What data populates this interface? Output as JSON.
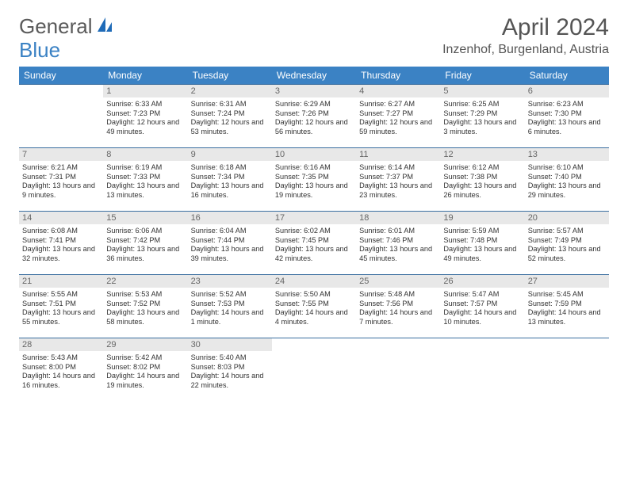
{
  "brand": {
    "part1": "General",
    "part2": "Blue"
  },
  "title": "April 2024",
  "location": "Inzenhof, Burgenland, Austria",
  "colors": {
    "header_bg": "#3b82c4",
    "header_text": "#ffffff",
    "daynum_bg": "#e8e8e8",
    "border": "#3b6fa0",
    "body_text": "#333333"
  },
  "dayHeaders": [
    "Sunday",
    "Monday",
    "Tuesday",
    "Wednesday",
    "Thursday",
    "Friday",
    "Saturday"
  ],
  "weeks": [
    [
      null,
      {
        "n": "1",
        "sr": "6:33 AM",
        "ss": "7:23 PM",
        "dl": "12 hours and 49 minutes."
      },
      {
        "n": "2",
        "sr": "6:31 AM",
        "ss": "7:24 PM",
        "dl": "12 hours and 53 minutes."
      },
      {
        "n": "3",
        "sr": "6:29 AM",
        "ss": "7:26 PM",
        "dl": "12 hours and 56 minutes."
      },
      {
        "n": "4",
        "sr": "6:27 AM",
        "ss": "7:27 PM",
        "dl": "12 hours and 59 minutes."
      },
      {
        "n": "5",
        "sr": "6:25 AM",
        "ss": "7:29 PM",
        "dl": "13 hours and 3 minutes."
      },
      {
        "n": "6",
        "sr": "6:23 AM",
        "ss": "7:30 PM",
        "dl": "13 hours and 6 minutes."
      }
    ],
    [
      {
        "n": "7",
        "sr": "6:21 AM",
        "ss": "7:31 PM",
        "dl": "13 hours and 9 minutes."
      },
      {
        "n": "8",
        "sr": "6:19 AM",
        "ss": "7:33 PM",
        "dl": "13 hours and 13 minutes."
      },
      {
        "n": "9",
        "sr": "6:18 AM",
        "ss": "7:34 PM",
        "dl": "13 hours and 16 minutes."
      },
      {
        "n": "10",
        "sr": "6:16 AM",
        "ss": "7:35 PM",
        "dl": "13 hours and 19 minutes."
      },
      {
        "n": "11",
        "sr": "6:14 AM",
        "ss": "7:37 PM",
        "dl": "13 hours and 23 minutes."
      },
      {
        "n": "12",
        "sr": "6:12 AM",
        "ss": "7:38 PM",
        "dl": "13 hours and 26 minutes."
      },
      {
        "n": "13",
        "sr": "6:10 AM",
        "ss": "7:40 PM",
        "dl": "13 hours and 29 minutes."
      }
    ],
    [
      {
        "n": "14",
        "sr": "6:08 AM",
        "ss": "7:41 PM",
        "dl": "13 hours and 32 minutes."
      },
      {
        "n": "15",
        "sr": "6:06 AM",
        "ss": "7:42 PM",
        "dl": "13 hours and 36 minutes."
      },
      {
        "n": "16",
        "sr": "6:04 AM",
        "ss": "7:44 PM",
        "dl": "13 hours and 39 minutes."
      },
      {
        "n": "17",
        "sr": "6:02 AM",
        "ss": "7:45 PM",
        "dl": "13 hours and 42 minutes."
      },
      {
        "n": "18",
        "sr": "6:01 AM",
        "ss": "7:46 PM",
        "dl": "13 hours and 45 minutes."
      },
      {
        "n": "19",
        "sr": "5:59 AM",
        "ss": "7:48 PM",
        "dl": "13 hours and 49 minutes."
      },
      {
        "n": "20",
        "sr": "5:57 AM",
        "ss": "7:49 PM",
        "dl": "13 hours and 52 minutes."
      }
    ],
    [
      {
        "n": "21",
        "sr": "5:55 AM",
        "ss": "7:51 PM",
        "dl": "13 hours and 55 minutes."
      },
      {
        "n": "22",
        "sr": "5:53 AM",
        "ss": "7:52 PM",
        "dl": "13 hours and 58 minutes."
      },
      {
        "n": "23",
        "sr": "5:52 AM",
        "ss": "7:53 PM",
        "dl": "14 hours and 1 minute."
      },
      {
        "n": "24",
        "sr": "5:50 AM",
        "ss": "7:55 PM",
        "dl": "14 hours and 4 minutes."
      },
      {
        "n": "25",
        "sr": "5:48 AM",
        "ss": "7:56 PM",
        "dl": "14 hours and 7 minutes."
      },
      {
        "n": "26",
        "sr": "5:47 AM",
        "ss": "7:57 PM",
        "dl": "14 hours and 10 minutes."
      },
      {
        "n": "27",
        "sr": "5:45 AM",
        "ss": "7:59 PM",
        "dl": "14 hours and 13 minutes."
      }
    ],
    [
      {
        "n": "28",
        "sr": "5:43 AM",
        "ss": "8:00 PM",
        "dl": "14 hours and 16 minutes."
      },
      {
        "n": "29",
        "sr": "5:42 AM",
        "ss": "8:02 PM",
        "dl": "14 hours and 19 minutes."
      },
      {
        "n": "30",
        "sr": "5:40 AM",
        "ss": "8:03 PM",
        "dl": "14 hours and 22 minutes."
      },
      null,
      null,
      null,
      null
    ]
  ],
  "labels": {
    "sunrise": "Sunrise:",
    "sunset": "Sunset:",
    "daylight": "Daylight:"
  }
}
